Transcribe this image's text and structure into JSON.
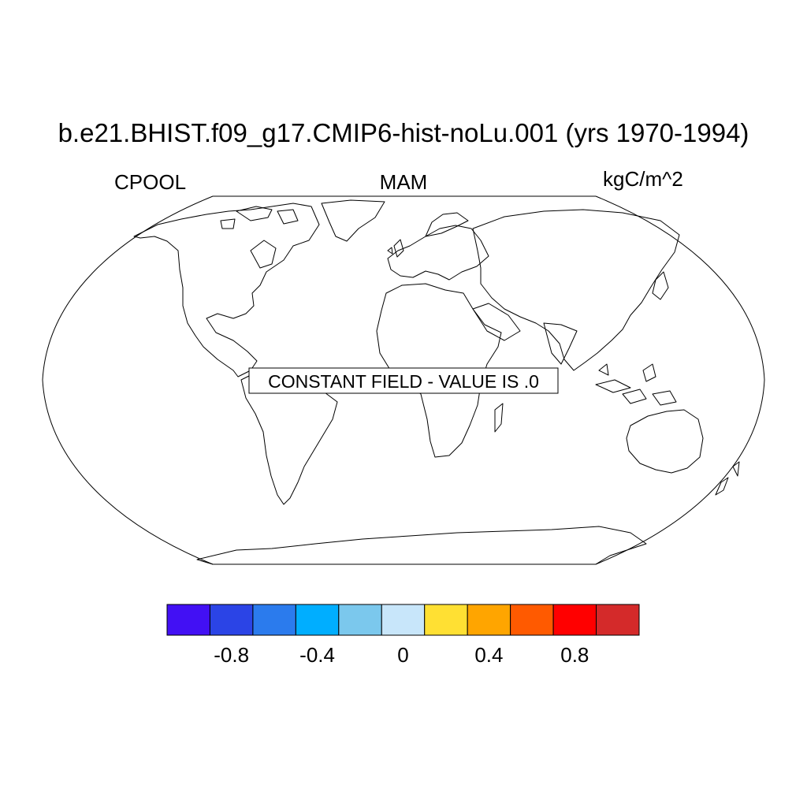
{
  "title": "b.e21.BHIST.f09_g17.CMIP6-hist-noLu.001 (yrs 1970-1994)",
  "left_label": "CPOOL",
  "center_label": "MAM",
  "right_label": "kgC/m^2",
  "map": {
    "projection": "Robinson",
    "message": "CONSTANT FIELD - VALUE IS .0",
    "land_outline_color": "#000000",
    "fill_color": "#ffffff"
  },
  "colorbar": {
    "colors": [
      "#4210f4",
      "#2b44e6",
      "#2b7bed",
      "#00aeff",
      "#7bc8ed",
      "#c8e6fa",
      "#ffe033",
      "#ffa500",
      "#ff5a00",
      "#ff0000",
      "#d42a2a"
    ],
    "labels": [
      {
        "text": "-0.8",
        "value": -0.8
      },
      {
        "text": "-0.4",
        "value": -0.4
      },
      {
        "text": "0",
        "value": 0
      },
      {
        "text": "0.4",
        "value": 0.4
      },
      {
        "text": "0.8",
        "value": 0.8
      }
    ],
    "min": -1.0,
    "max": 1.0
  }
}
